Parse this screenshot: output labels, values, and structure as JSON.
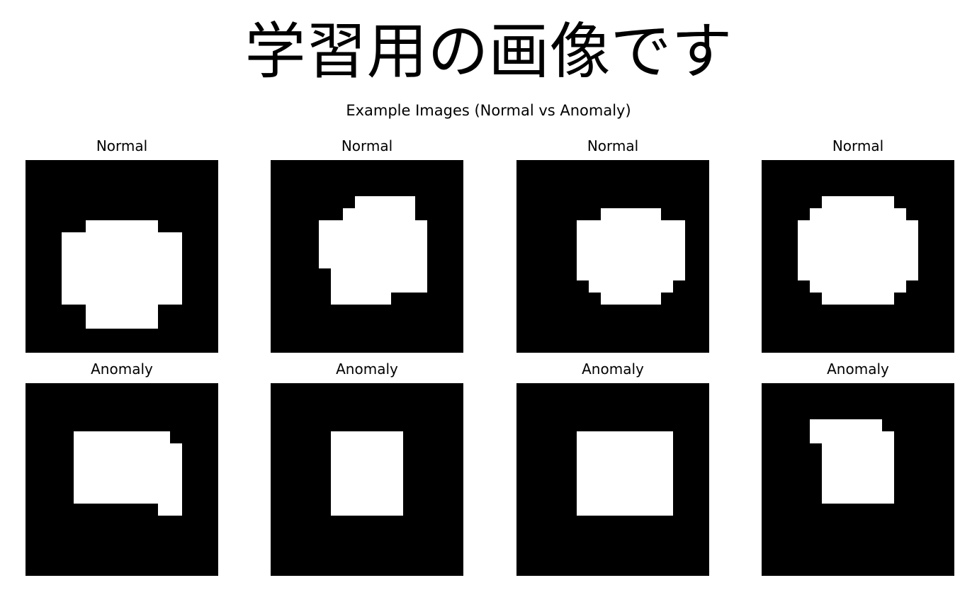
{
  "heading": "学習用の画像です",
  "figure": {
    "suptitle": "Example Images (Normal vs Anomaly)",
    "colors": {
      "background": "#000000",
      "shape": "#ffffff"
    },
    "panels": [
      {
        "title": "Normal",
        "shape": "circle",
        "grid": 16,
        "cells": [
          [
            5,
            5,
            10
          ],
          [
            6,
            3,
            12
          ],
          [
            7,
            3,
            12
          ],
          [
            8,
            3,
            12
          ],
          [
            9,
            3,
            12
          ],
          [
            10,
            3,
            12
          ],
          [
            11,
            3,
            12
          ],
          [
            12,
            5,
            10
          ],
          [
            13,
            5,
            10
          ]
        ]
      },
      {
        "title": "Normal",
        "shape": "circle",
        "grid": 16,
        "cells": [
          [
            3,
            7,
            11
          ],
          [
            4,
            6,
            11
          ],
          [
            5,
            4,
            12
          ],
          [
            6,
            4,
            12
          ],
          [
            7,
            4,
            12
          ],
          [
            8,
            4,
            12
          ],
          [
            9,
            5,
            12
          ],
          [
            10,
            5,
            12
          ],
          [
            11,
            5,
            9
          ]
        ]
      },
      {
        "title": "Normal",
        "shape": "circle",
        "grid": 16,
        "cells": [
          [
            4,
            7,
            11
          ],
          [
            5,
            5,
            13
          ],
          [
            6,
            5,
            13
          ],
          [
            7,
            5,
            13
          ],
          [
            8,
            5,
            13
          ],
          [
            9,
            5,
            13
          ],
          [
            10,
            6,
            12
          ],
          [
            11,
            7,
            11
          ]
        ]
      },
      {
        "title": "Normal",
        "shape": "circle",
        "grid": 16,
        "cells": [
          [
            3,
            5,
            10
          ],
          [
            4,
            4,
            11
          ],
          [
            5,
            3,
            12
          ],
          [
            6,
            3,
            12
          ],
          [
            7,
            3,
            12
          ],
          [
            8,
            3,
            12
          ],
          [
            9,
            3,
            12
          ],
          [
            10,
            4,
            11
          ],
          [
            11,
            5,
            10
          ]
        ]
      },
      {
        "title": "Anomaly",
        "shape": "square",
        "grid": 16,
        "cells": [
          [
            4,
            4,
            11
          ],
          [
            5,
            4,
            12
          ],
          [
            6,
            4,
            12
          ],
          [
            7,
            4,
            12
          ],
          [
            8,
            4,
            12
          ],
          [
            9,
            4,
            12
          ],
          [
            10,
            11,
            12
          ]
        ]
      },
      {
        "title": "Anomaly",
        "shape": "square",
        "grid": 16,
        "cells": [
          [
            4,
            5,
            10
          ],
          [
            5,
            5,
            10
          ],
          [
            6,
            5,
            10
          ],
          [
            7,
            5,
            10
          ],
          [
            8,
            5,
            10
          ],
          [
            9,
            5,
            10
          ],
          [
            10,
            5,
            10
          ]
        ]
      },
      {
        "title": "Anomaly",
        "shape": "square",
        "grid": 16,
        "cells": [
          [
            4,
            5,
            12
          ],
          [
            5,
            5,
            12
          ],
          [
            6,
            5,
            12
          ],
          [
            7,
            5,
            12
          ],
          [
            8,
            5,
            12
          ],
          [
            9,
            5,
            12
          ],
          [
            10,
            5,
            12
          ]
        ]
      },
      {
        "title": "Anomaly",
        "shape": "square",
        "grid": 16,
        "cells": [
          [
            3,
            4,
            9
          ],
          [
            4,
            4,
            10
          ],
          [
            5,
            5,
            10
          ],
          [
            6,
            5,
            10
          ],
          [
            7,
            5,
            10
          ],
          [
            8,
            5,
            10
          ],
          [
            9,
            5,
            10
          ]
        ]
      }
    ]
  }
}
